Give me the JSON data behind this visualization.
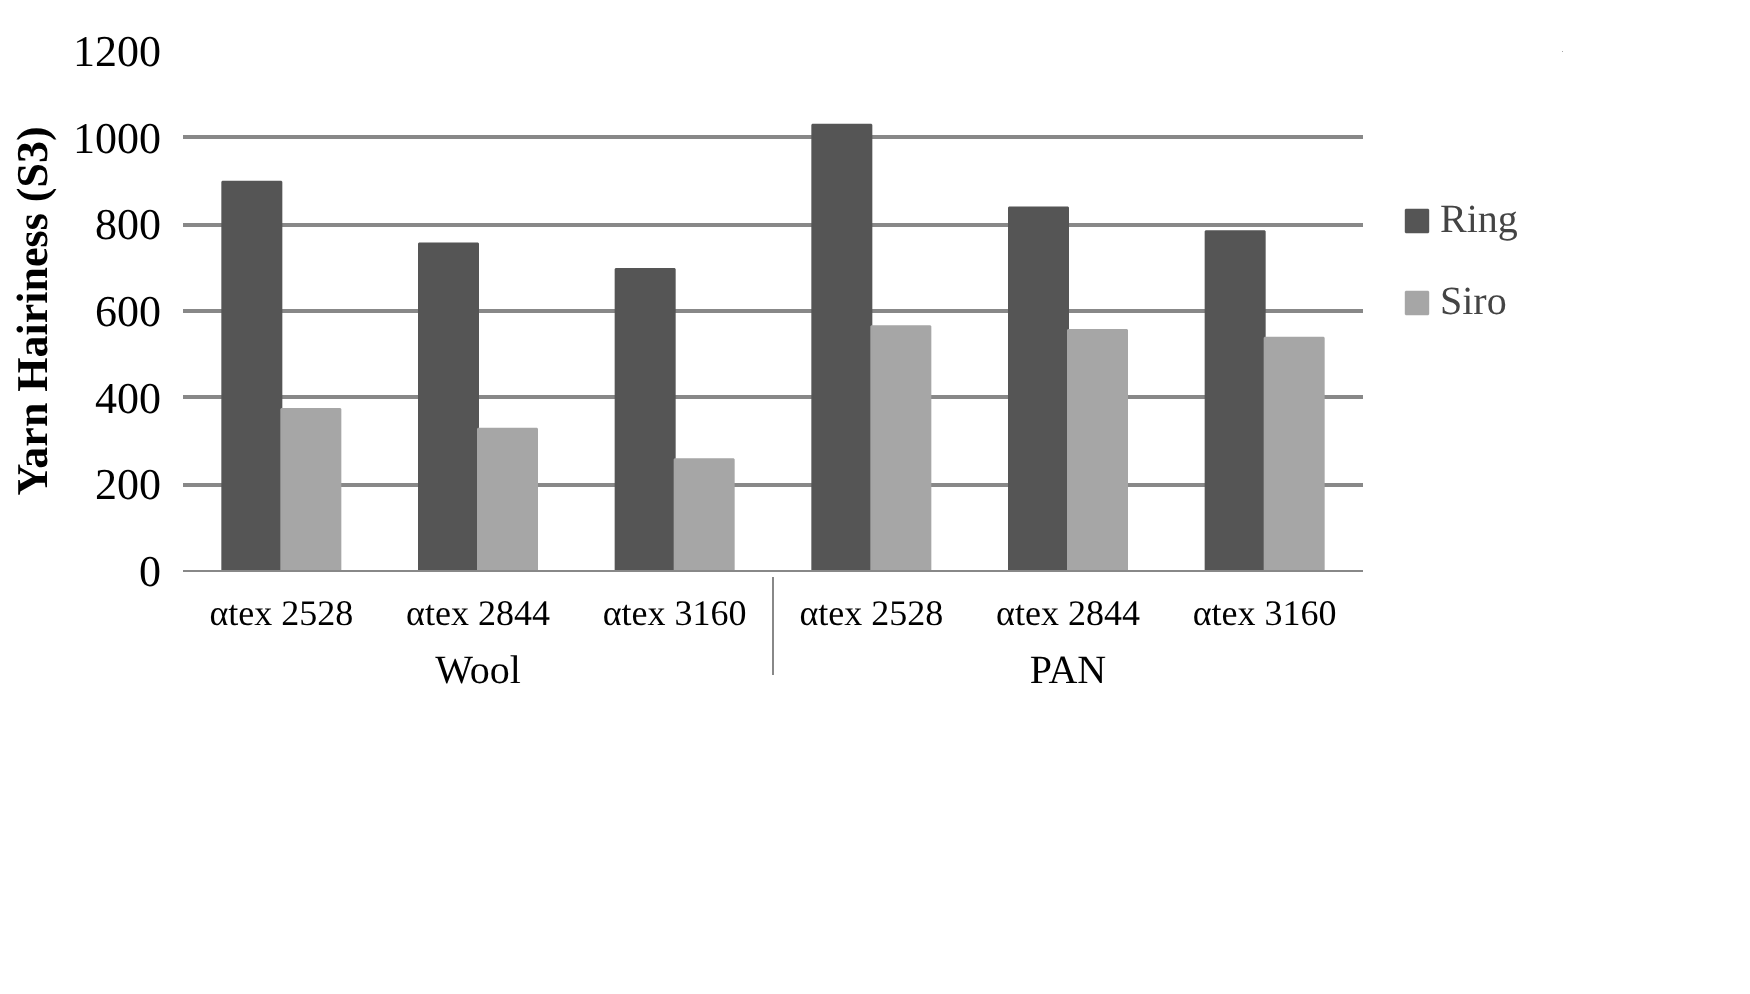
{
  "chart_data": {
    "type": "bar",
    "ylabel": "Yarn Hairiness (S3)",
    "categories": [
      "αtex 2528",
      "αtex 2844",
      "αtex 3160",
      "αtex 2528",
      "αtex 2844",
      "αtex 3160"
    ],
    "annotations": [
      "Wool",
      "PAN"
    ],
    "series": [
      {
        "name": "Ring",
        "color": "#555555",
        "values": [
          898,
          756,
          697,
          1030,
          839,
          784
        ]
      },
      {
        "name": "Siro",
        "color": "#a6a6a6",
        "values": [
          374,
          328,
          258,
          565,
          556,
          538
        ]
      }
    ],
    "ylim": [
      0,
      1200
    ],
    "yticks": [
      0,
      200,
      400,
      600,
      800,
      1000,
      1200
    ],
    "grid": "y",
    "legend": "right"
  }
}
